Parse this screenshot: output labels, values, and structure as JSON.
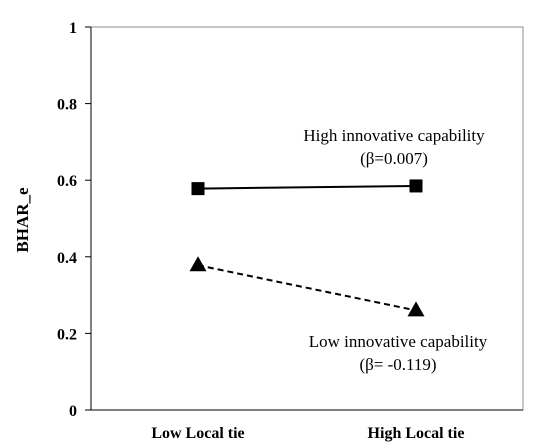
{
  "chart_data": {
    "type": "line",
    "categories": [
      "Low Local tie",
      "High Local tie"
    ],
    "ylabel": "BHAR_e",
    "xlabel": "",
    "ylim": [
      0,
      1
    ],
    "yticks": [
      "0",
      "0.2",
      "0.4",
      "0.6",
      "0.8",
      "1"
    ],
    "ytick_values": [
      0,
      0.2,
      0.4,
      0.6,
      0.8,
      1
    ],
    "grid": false,
    "series": [
      {
        "values": [
          0.578,
          0.585
        ],
        "marker": "square",
        "line_style": "solid",
        "color": "#000000",
        "annotation": [
          "High innovative capability",
          "(β=0.007)"
        ]
      },
      {
        "values": [
          0.378,
          0.26
        ],
        "marker": "triangle",
        "line_style": "dashed",
        "color": "#000000",
        "annotation": [
          "Low innovative capability",
          "(β= -0.119)"
        ]
      }
    ]
  }
}
